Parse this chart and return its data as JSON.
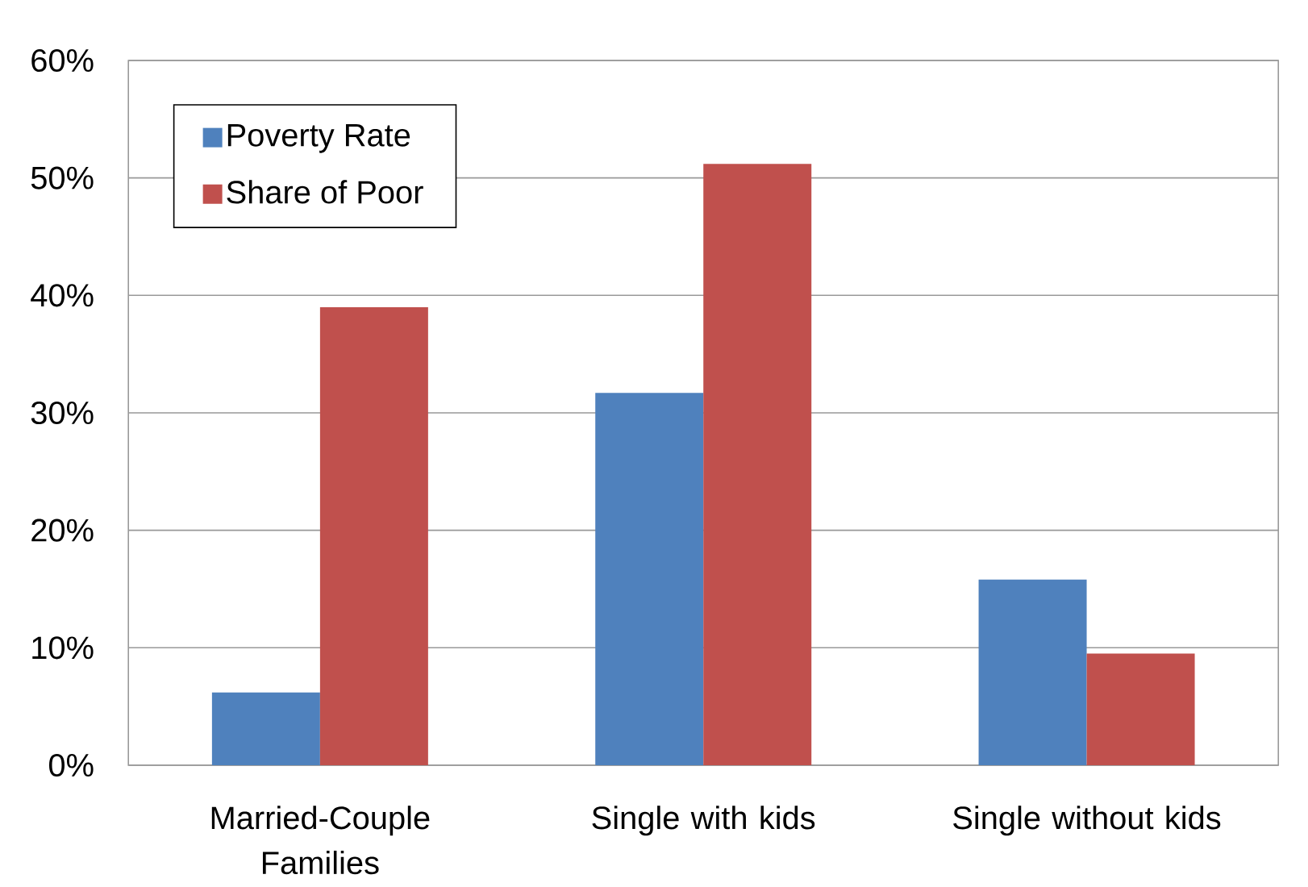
{
  "chart_data": {
    "type": "bar",
    "categories": [
      "Married-Couple Families",
      "Single with kids",
      "Single without kids"
    ],
    "series": [
      {
        "name": "Poverty Rate",
        "color": "#4f81bd",
        "values": [
          6.2,
          31.7,
          15.8
        ]
      },
      {
        "name": "Share of Poor",
        "color": "#c0504d",
        "values": [
          39.0,
          51.2,
          9.5
        ]
      }
    ],
    "ylim": [
      0,
      60
    ],
    "yticks": [
      {
        "value": 0,
        "label": "0%"
      },
      {
        "value": 10,
        "label": "10%"
      },
      {
        "value": 20,
        "label": "20%"
      },
      {
        "value": 30,
        "label": "30%"
      },
      {
        "value": 40,
        "label": "40%"
      },
      {
        "value": 50,
        "label": "50%"
      },
      {
        "value": 60,
        "label": "60%"
      }
    ],
    "grid": "y",
    "legend": "top left"
  }
}
